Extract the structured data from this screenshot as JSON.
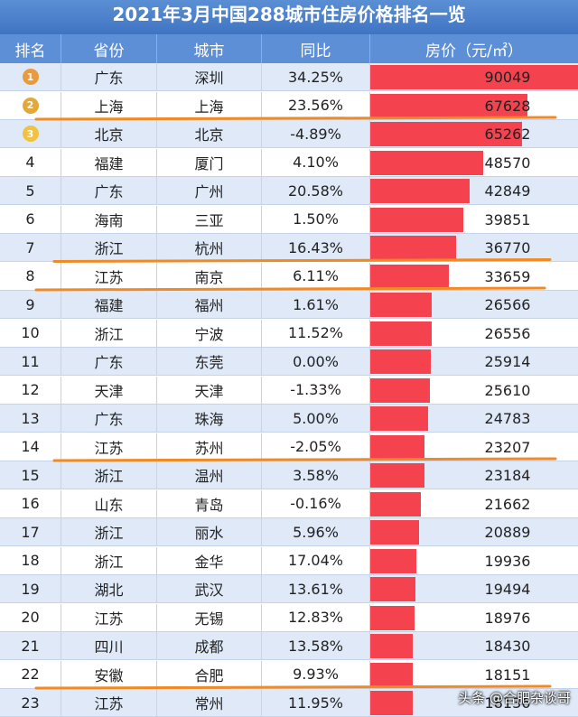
{
  "title": "2021年3月中国288城市住房价格排名一览",
  "headers": [
    "排名",
    "省份",
    "城市",
    "同比",
    "房价（元/㎡）"
  ],
  "medal_colors": [
    "#e89a3c",
    "#e3a83a",
    "#f0c23f"
  ],
  "accent_colors": {
    "header": "#5d8fd6",
    "bar": "#f4424f",
    "line": "#f08a24"
  },
  "footer": "头条 @合肥杂谈哥",
  "chart_data": {
    "type": "table",
    "title": "2021年3月中国288城市住房价格排名一览",
    "columns": [
      "排名",
      "省份",
      "城市",
      "同比",
      "房价（元/㎡）"
    ],
    "price_max": 90049,
    "rows": [
      {
        "rank": "1",
        "province": "广东",
        "city": "深圳",
        "yoy": "34.25%",
        "price": 90049
      },
      {
        "rank": "2",
        "province": "上海",
        "city": "上海",
        "yoy": "23.56%",
        "price": 67628
      },
      {
        "rank": "3",
        "province": "北京",
        "city": "北京",
        "yoy": "-4.89%",
        "price": 65262
      },
      {
        "rank": "4",
        "province": "福建",
        "city": "厦门",
        "yoy": "4.10%",
        "price": 48570
      },
      {
        "rank": "5",
        "province": "广东",
        "city": "广州",
        "yoy": "20.58%",
        "price": 42849
      },
      {
        "rank": "6",
        "province": "海南",
        "city": "三亚",
        "yoy": "1.50%",
        "price": 39851
      },
      {
        "rank": "7",
        "province": "浙江",
        "city": "杭州",
        "yoy": "16.43%",
        "price": 36770
      },
      {
        "rank": "8",
        "province": "江苏",
        "city": "南京",
        "yoy": "6.11%",
        "price": 33659
      },
      {
        "rank": "9",
        "province": "福建",
        "city": "福州",
        "yoy": "1.61%",
        "price": 26566
      },
      {
        "rank": "10",
        "province": "浙江",
        "city": "宁波",
        "yoy": "11.52%",
        "price": 26556
      },
      {
        "rank": "11",
        "province": "广东",
        "city": "东莞",
        "yoy": "0.00%",
        "price": 25914
      },
      {
        "rank": "12",
        "province": "天津",
        "city": "天津",
        "yoy": "-1.33%",
        "price": 25610
      },
      {
        "rank": "13",
        "province": "广东",
        "city": "珠海",
        "yoy": "5.00%",
        "price": 24783
      },
      {
        "rank": "14",
        "province": "江苏",
        "city": "苏州",
        "yoy": "-2.05%",
        "price": 23207
      },
      {
        "rank": "15",
        "province": "浙江",
        "city": "温州",
        "yoy": "3.58%",
        "price": 23184
      },
      {
        "rank": "16",
        "province": "山东",
        "city": "青岛",
        "yoy": "-0.16%",
        "price": 21662
      },
      {
        "rank": "17",
        "province": "浙江",
        "city": "丽水",
        "yoy": "5.96%",
        "price": 20889
      },
      {
        "rank": "18",
        "province": "浙江",
        "city": "金华",
        "yoy": "17.04%",
        "price": 19936
      },
      {
        "rank": "19",
        "province": "湖北",
        "city": "武汉",
        "yoy": "13.61%",
        "price": 19494
      },
      {
        "rank": "20",
        "province": "江苏",
        "city": "无锡",
        "yoy": "12.83%",
        "price": 18976
      },
      {
        "rank": "21",
        "province": "四川",
        "city": "成都",
        "yoy": "13.58%",
        "price": 18430
      },
      {
        "rank": "22",
        "province": "安徽",
        "city": "合肥",
        "yoy": "9.93%",
        "price": 18151
      },
      {
        "rank": "23",
        "province": "江苏",
        "city": "常州",
        "yoy": "11.95%",
        "price": 18136
      }
    ],
    "underlined_ranks": [
      "2",
      "7",
      "8",
      "14",
      "22"
    ]
  }
}
